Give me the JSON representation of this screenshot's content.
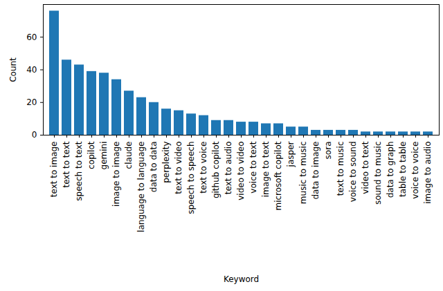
{
  "chart_data": {
    "type": "bar",
    "x_label": "Keyword",
    "y_label": "Count",
    "categories": [
      "text to image",
      "text to text",
      "speech to text",
      "copilot",
      "gemini",
      "image to image",
      "claude",
      "language to language",
      "data to data",
      "perplexity",
      "text to video",
      "speech to speech",
      "text to voice",
      "github copilot",
      "text to audio",
      "video to video",
      "voice to text",
      "image to text",
      "microsoft copilot",
      "jasper",
      "music to music",
      "data to image",
      "sora",
      "text to music",
      "voice to sound",
      "video to text",
      "sound to music",
      "data to graph",
      "table to table",
      "voice to voice",
      "image to audio"
    ],
    "values": [
      76,
      46,
      43,
      39,
      38,
      34,
      27,
      23,
      20,
      16,
      15,
      13,
      12,
      9,
      9,
      8,
      8,
      7,
      7,
      5,
      5,
      3,
      3,
      3,
      3,
      2,
      2,
      2,
      2,
      2,
      2
    ],
    "color": "#1f77b4",
    "ylim": [
      0,
      80
    ],
    "yticks": [
      0,
      20,
      40,
      60
    ],
    "grid": false
  }
}
